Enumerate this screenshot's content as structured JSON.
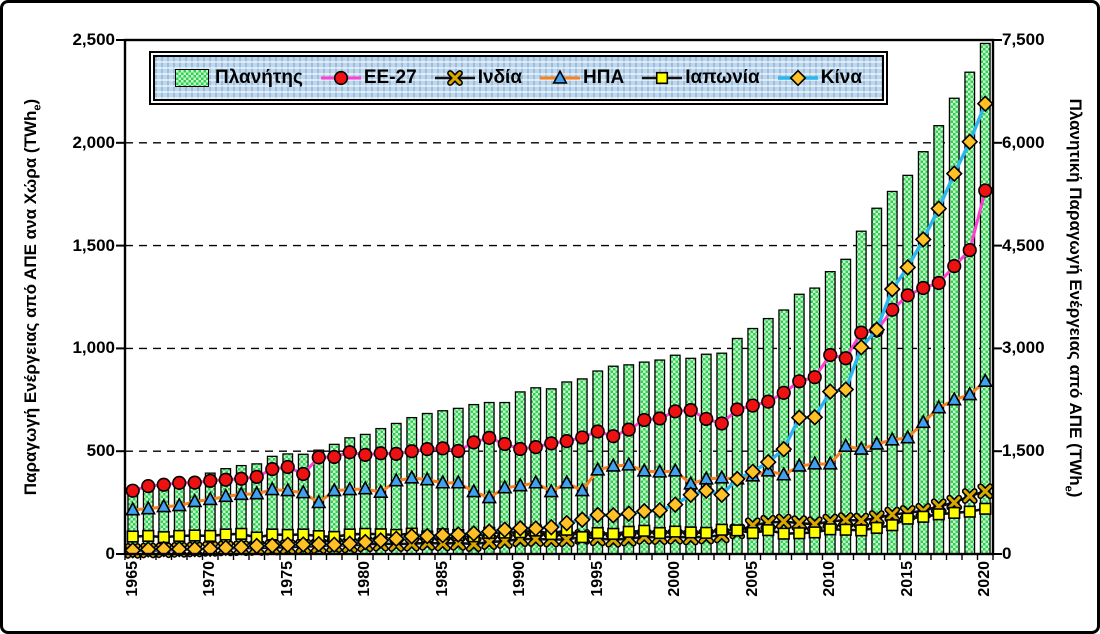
{
  "chart_data": {
    "type": "bar+line",
    "x": [
      1965,
      1966,
      1967,
      1968,
      1969,
      1970,
      1971,
      1972,
      1973,
      1974,
      1975,
      1976,
      1977,
      1978,
      1979,
      1980,
      1981,
      1982,
      1983,
      1984,
      1985,
      1986,
      1987,
      1988,
      1989,
      1990,
      1991,
      1992,
      1993,
      1994,
      1995,
      1996,
      1997,
      1998,
      1999,
      2000,
      2001,
      2002,
      2003,
      2004,
      2005,
      2006,
      2007,
      2008,
      2009,
      2010,
      2011,
      2012,
      2013,
      2014,
      2015,
      2016,
      2017,
      2018,
      2019,
      2020
    ],
    "x_tick_labels": [
      "1965",
      "1970",
      "1975",
      "1980",
      "1985",
      "1990",
      "1995",
      "2000",
      "2005",
      "2010",
      "2015",
      "2020"
    ],
    "x_tick_every": 5,
    "left_axis": {
      "title_pre": "Παραγωγή Ενέργειας από ΑΠΕ ανα  Χώρα (TWh",
      "title_sub": "e",
      "title_post": ")",
      "ticks": [
        "0",
        "500",
        "1,000",
        "1,500",
        "2,000",
        "2,500"
      ],
      "tick_values": [
        0,
        500,
        1000,
        1500,
        2000,
        2500
      ],
      "range": [
        0,
        2500
      ]
    },
    "right_axis": {
      "title_pre": "Πλανητική Παραγωγή Ενέργειας από  ΑΠΕ (TWh",
      "title_sub": "e",
      "title_post": ")",
      "ticks": [
        "0",
        "1,500",
        "3,000",
        "4,500",
        "6,000",
        "7,500"
      ],
      "tick_values": [
        0,
        1500,
        3000,
        4500,
        6000,
        7500
      ],
      "range": [
        0,
        7500
      ]
    },
    "gridlines_left": [
      500,
      1000,
      1500,
      2000
    ],
    "bar_series": {
      "name": "Πλανήτης",
      "axis": "right",
      "fill_bg": "#c9f7d2",
      "fill_dot": "#2fd24f",
      "stroke": "#000000",
      "values": [
        930,
        965,
        990,
        1045,
        1105,
        1180,
        1245,
        1290,
        1315,
        1425,
        1460,
        1455,
        1515,
        1600,
        1695,
        1745,
        1830,
        1905,
        1990,
        2050,
        2090,
        2125,
        2180,
        2210,
        2210,
        2365,
        2425,
        2410,
        2510,
        2555,
        2670,
        2740,
        2760,
        2800,
        2830,
        2900,
        2855,
        2915,
        2930,
        3145,
        3290,
        3435,
        3560,
        3790,
        3880,
        4120,
        4300,
        4710,
        5045,
        5290,
        5525,
        5870,
        6250,
        6650,
        7030,
        7450
      ]
    },
    "line_series": [
      {
        "name": "EE-27",
        "axis": "left",
        "line_color": "#ff3fd0",
        "line_width": 3,
        "marker": "circle",
        "marker_fill": "#ee1111",
        "values": [
          308,
          330,
          337,
          346,
          347,
          356,
          361,
          366,
          375,
          413,
          423,
          389,
          470,
          472,
          495,
          482,
          490,
          487,
          500,
          510,
          514,
          501,
          543,
          565,
          535,
          511,
          520,
          538,
          549,
          567,
          596,
          573,
          605,
          652,
          659,
          694,
          700,
          657,
          635,
          703,
          722,
          741,
          784,
          840,
          860,
          968,
          952,
          1077,
          1087,
          1188,
          1258,
          1294,
          1318,
          1400,
          1478,
          1768
        ]
      },
      {
        "name": "Ινδία",
        "axis": "left",
        "line_color": "#111111",
        "line_width": 2.6,
        "marker": "x",
        "marker_fill": "#d8a800",
        "values": [
          15,
          17,
          18,
          20,
          22,
          25,
          27,
          28,
          29,
          31,
          33,
          36,
          38,
          43,
          41,
          47,
          50,
          48,
          50,
          54,
          51,
          54,
          48,
          58,
          63,
          72,
          73,
          70,
          71,
          83,
          76,
          69,
          75,
          83,
          82,
          84,
          80,
          85,
          90,
          110,
          140,
          152,
          158,
          150,
          145,
          158,
          165,
          163,
          175,
          192,
          200,
          210,
          232,
          250,
          282,
          305
        ]
      },
      {
        "name": "ΗΠΑ",
        "axis": "left",
        "line_color": "#f58220",
        "line_width": 3,
        "marker": "triangle",
        "marker_fill": "#3fa1f0",
        "values": [
          215,
          220,
          230,
          235,
          255,
          265,
          280,
          290,
          293,
          313,
          308,
          298,
          250,
          308,
          313,
          317,
          300,
          356,
          370,
          361,
          346,
          346,
          303,
          274,
          322,
          332,
          346,
          303,
          346,
          308,
          409,
          428,
          433,
          404,
          399,
          404,
          341,
          365,
          370,
          365,
          380,
          404,
          385,
          428,
          438,
          438,
          524,
          510,
          535,
          555,
          565,
          640,
          711,
          750,
          775,
          840
        ]
      },
      {
        "name": "Ιαπωνία",
        "axis": "left",
        "line_color": "#111111",
        "line_width": 2.6,
        "marker": "square",
        "marker_fill": "#ffff00",
        "values": [
          85,
          88,
          82,
          88,
          90,
          88,
          95,
          98,
          80,
          95,
          93,
          95,
          87,
          83,
          95,
          98,
          96,
          93,
          99,
          85,
          96,
          92,
          86,
          103,
          104,
          106,
          114,
          97,
          118,
          82,
          102,
          98,
          108,
          113,
          102,
          109,
          105,
          103,
          118,
          115,
          102,
          116,
          99,
          101,
          105,
          120,
          118,
          115,
          127,
          140,
          172,
          181,
          193,
          200,
          206,
          220
        ]
      },
      {
        "name": "Κίνα",
        "axis": "left",
        "line_color": "#2bb7ed",
        "line_width": 3.4,
        "marker": "diamond",
        "marker_fill": "#ffc125",
        "values": [
          18,
          22,
          24,
          24,
          24,
          25,
          30,
          33,
          39,
          41,
          45,
          46,
          48,
          45,
          50,
          58,
          66,
          74,
          86,
          87,
          92,
          95,
          100,
          109,
          118,
          125,
          124,
          130,
          150,
          167,
          190,
          188,
          196,
          208,
          212,
          240,
          288,
          308,
          288,
          365,
          400,
          447,
          510,
          663,
          665,
          790,
          800,
          1005,
          1091,
          1288,
          1394,
          1530,
          1680,
          1850,
          2005,
          2190
        ]
      }
    ]
  },
  "legend": {
    "swatch_types": [
      "bar",
      "circle",
      "x",
      "triangle",
      "square",
      "diamond"
    ]
  }
}
